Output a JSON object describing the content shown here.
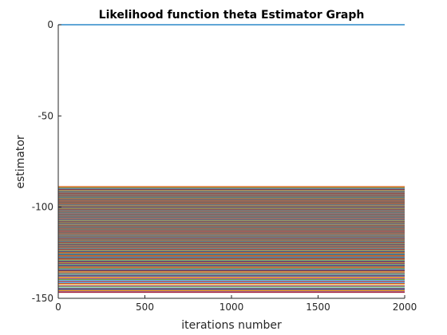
{
  "chart_data": {
    "type": "line",
    "title": "Likelihood function theta Estimator Graph",
    "xlabel": "iterations number",
    "ylabel": "estimator",
    "xlim": [
      0,
      2000
    ],
    "ylim": [
      -150,
      0
    ],
    "xticks": [
      0,
      500,
      1000,
      1500,
      2000
    ],
    "xtick_labels": [
      "0",
      "500",
      "1000",
      "1500",
      "2000"
    ],
    "yticks": [
      0,
      -50,
      -100,
      -150
    ],
    "ytick_labels": [
      "0",
      "-50",
      "-100",
      "-150"
    ],
    "grid": false,
    "legend": "none",
    "series_description": "Many constant estimator traces over iterations; one at 0, the rest densely spread between about -89 and -147.",
    "highlight_value": 0,
    "value_levels": [
      -88.7,
      -90.5,
      -91.6,
      -92.4,
      -93.1,
      -93.8,
      -94.5,
      -95.1,
      -95.7,
      -96.3,
      -96.9,
      -97.4,
      -98.0,
      -98.5,
      -99.0,
      -99.6,
      -100.1,
      -100.6,
      -101.1,
      -101.7,
      -102.2,
      -102.7,
      -103.3,
      -103.8,
      -104.4,
      -104.9,
      -105.5,
      -106.1,
      -106.6,
      -107.2,
      -107.8,
      -108.4,
      -109.0,
      -109.7,
      -110.3,
      -111.0,
      -111.7,
      -112.4,
      -113.1,
      -113.9,
      -114.7,
      -115.5,
      -116.3,
      -117.2,
      -118.1,
      -119.0,
      -120.0,
      -121.1,
      -122.2,
      -123.4,
      -124.7,
      -126.1,
      -127.6,
      -129.2,
      -131.0,
      -133.0,
      -135.2,
      -137.8,
      -140.7,
      -144.3,
      -146.8
    ],
    "colors": [
      "#0072BD",
      "#D95319",
      "#EDB120",
      "#7E2F8E",
      "#77AC30",
      "#4DBEEE",
      "#A2142F"
    ]
  }
}
